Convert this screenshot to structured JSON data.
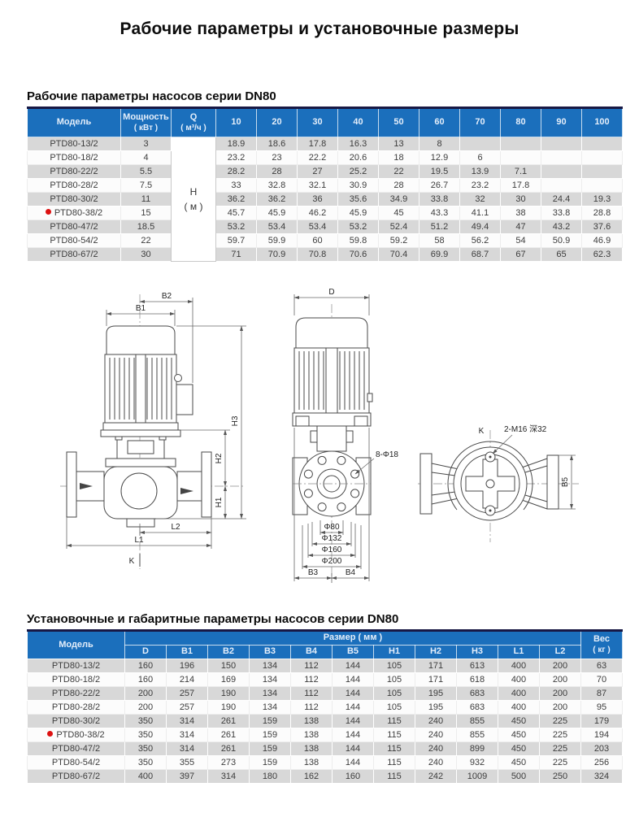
{
  "page": {
    "title": "Рабочие параметры и установочные размеры"
  },
  "table1": {
    "heading": "Рабочие параметры насосов серии DN80",
    "col_model": "Модель",
    "col_power_line1": "Мощность",
    "col_power_line2": "( кВт )",
    "col_q_line1": "Q",
    "col_q_line2": "( м³/ч )",
    "flow_cols": [
      "10",
      "20",
      "30",
      "40",
      "50",
      "60",
      "70",
      "80",
      "90",
      "100"
    ],
    "head_label_line1": "H",
    "head_label_line2": "( м )",
    "rows": [
      {
        "model": "PTD80-13/2",
        "power": "3",
        "marked": false,
        "values": [
          "18.9",
          "18.6",
          "17.8",
          "16.3",
          "13",
          "8",
          "",
          "",
          "",
          ""
        ]
      },
      {
        "model": "PTD80-18/2",
        "power": "4",
        "marked": false,
        "values": [
          "23.2",
          "23",
          "22.2",
          "20.6",
          "18",
          "12.9",
          "6",
          "",
          "",
          ""
        ]
      },
      {
        "model": "PTD80-22/2",
        "power": "5.5",
        "marked": false,
        "values": [
          "28.2",
          "28",
          "27",
          "25.2",
          "22",
          "19.5",
          "13.9",
          "7.1",
          "",
          ""
        ]
      },
      {
        "model": "PTD80-28/2",
        "power": "7.5",
        "marked": false,
        "values": [
          "33",
          "32.8",
          "32.1",
          "30.9",
          "28",
          "26.7",
          "23.2",
          "17.8",
          "",
          ""
        ]
      },
      {
        "model": "PTD80-30/2",
        "power": "11",
        "marked": false,
        "values": [
          "36.2",
          "36.2",
          "36",
          "35.6",
          "34.9",
          "33.8",
          "32",
          "30",
          "24.4",
          "19.3"
        ]
      },
      {
        "model": "PTD80-38/2",
        "power": "15",
        "marked": true,
        "values": [
          "45.7",
          "45.9",
          "46.2",
          "45.9",
          "45",
          "43.3",
          "41.1",
          "38",
          "33.8",
          "28.8"
        ]
      },
      {
        "model": "PTD80-47/2",
        "power": "18.5",
        "marked": false,
        "values": [
          "53.2",
          "53.4",
          "53.4",
          "53.2",
          "52.4",
          "51.2",
          "49.4",
          "47",
          "43.2",
          "37.6"
        ]
      },
      {
        "model": "PTD80-54/2",
        "power": "22",
        "marked": false,
        "values": [
          "59.7",
          "59.9",
          "60",
          "59.8",
          "59.2",
          "58",
          "56.2",
          "54",
          "50.9",
          "46.9"
        ]
      },
      {
        "model": "PTD80-67/2",
        "power": "30",
        "marked": false,
        "values": [
          "71",
          "70.9",
          "70.8",
          "70.6",
          "70.4",
          "69.9",
          "68.7",
          "67",
          "65",
          "62.3"
        ]
      }
    ]
  },
  "drawings": {
    "front": {
      "b2": "B2",
      "b1": "B1",
      "h3": "H3",
      "h2": "H2",
      "h1": "H1",
      "l2": "L2",
      "l1": "L1",
      "k": "K"
    },
    "side": {
      "d": "D",
      "bolt_holes": "8-Φ18",
      "dia80": "Φ80",
      "dia132": "Φ132",
      "dia160": "Φ160",
      "dia200": "Φ200",
      "b3": "B3",
      "b4": "B4"
    },
    "top": {
      "k": "K",
      "thread": "2-M16 深32",
      "b5": "B5"
    }
  },
  "table2": {
    "heading": "Установочные и габаритные параметры насосов серии DN80",
    "col_model": "Модель",
    "size_header": "Размер ( мм )",
    "size_cols": [
      "D",
      "B1",
      "B2",
      "B3",
      "B4",
      "B5",
      "H1",
      "H2",
      "H3",
      "L1",
      "L2"
    ],
    "col_weight_line1": "Вес",
    "col_weight_line2": "( кг )",
    "rows": [
      {
        "model": "PTD80-13/2",
        "marked": false,
        "values": [
          "160",
          "196",
          "150",
          "134",
          "112",
          "144",
          "105",
          "171",
          "613",
          "400",
          "200"
        ],
        "weight": "63"
      },
      {
        "model": "PTD80-18/2",
        "marked": false,
        "values": [
          "160",
          "214",
          "169",
          "134",
          "112",
          "144",
          "105",
          "171",
          "618",
          "400",
          "200"
        ],
        "weight": "70"
      },
      {
        "model": "PTD80-22/2",
        "marked": false,
        "values": [
          "200",
          "257",
          "190",
          "134",
          "112",
          "144",
          "105",
          "195",
          "683",
          "400",
          "200"
        ],
        "weight": "87"
      },
      {
        "model": "PTD80-28/2",
        "marked": false,
        "values": [
          "200",
          "257",
          "190",
          "134",
          "112",
          "144",
          "105",
          "195",
          "683",
          "400",
          "200"
        ],
        "weight": "95"
      },
      {
        "model": "PTD80-30/2",
        "marked": false,
        "values": [
          "350",
          "314",
          "261",
          "159",
          "138",
          "144",
          "115",
          "240",
          "855",
          "450",
          "225"
        ],
        "weight": "179"
      },
      {
        "model": "PTD80-38/2",
        "marked": true,
        "values": [
          "350",
          "314",
          "261",
          "159",
          "138",
          "144",
          "115",
          "240",
          "855",
          "450",
          "225"
        ],
        "weight": "194"
      },
      {
        "model": "PTD80-47/2",
        "marked": false,
        "values": [
          "350",
          "314",
          "261",
          "159",
          "138",
          "144",
          "115",
          "240",
          "899",
          "450",
          "225"
        ],
        "weight": "203"
      },
      {
        "model": "PTD80-54/2",
        "marked": false,
        "values": [
          "350",
          "355",
          "273",
          "159",
          "138",
          "144",
          "115",
          "240",
          "932",
          "450",
          "225"
        ],
        "weight": "256"
      },
      {
        "model": "PTD80-67/2",
        "marked": false,
        "values": [
          "400",
          "397",
          "314",
          "180",
          "162",
          "160",
          "115",
          "242",
          "1009",
          "500",
          "250"
        ],
        "weight": "324"
      }
    ]
  }
}
